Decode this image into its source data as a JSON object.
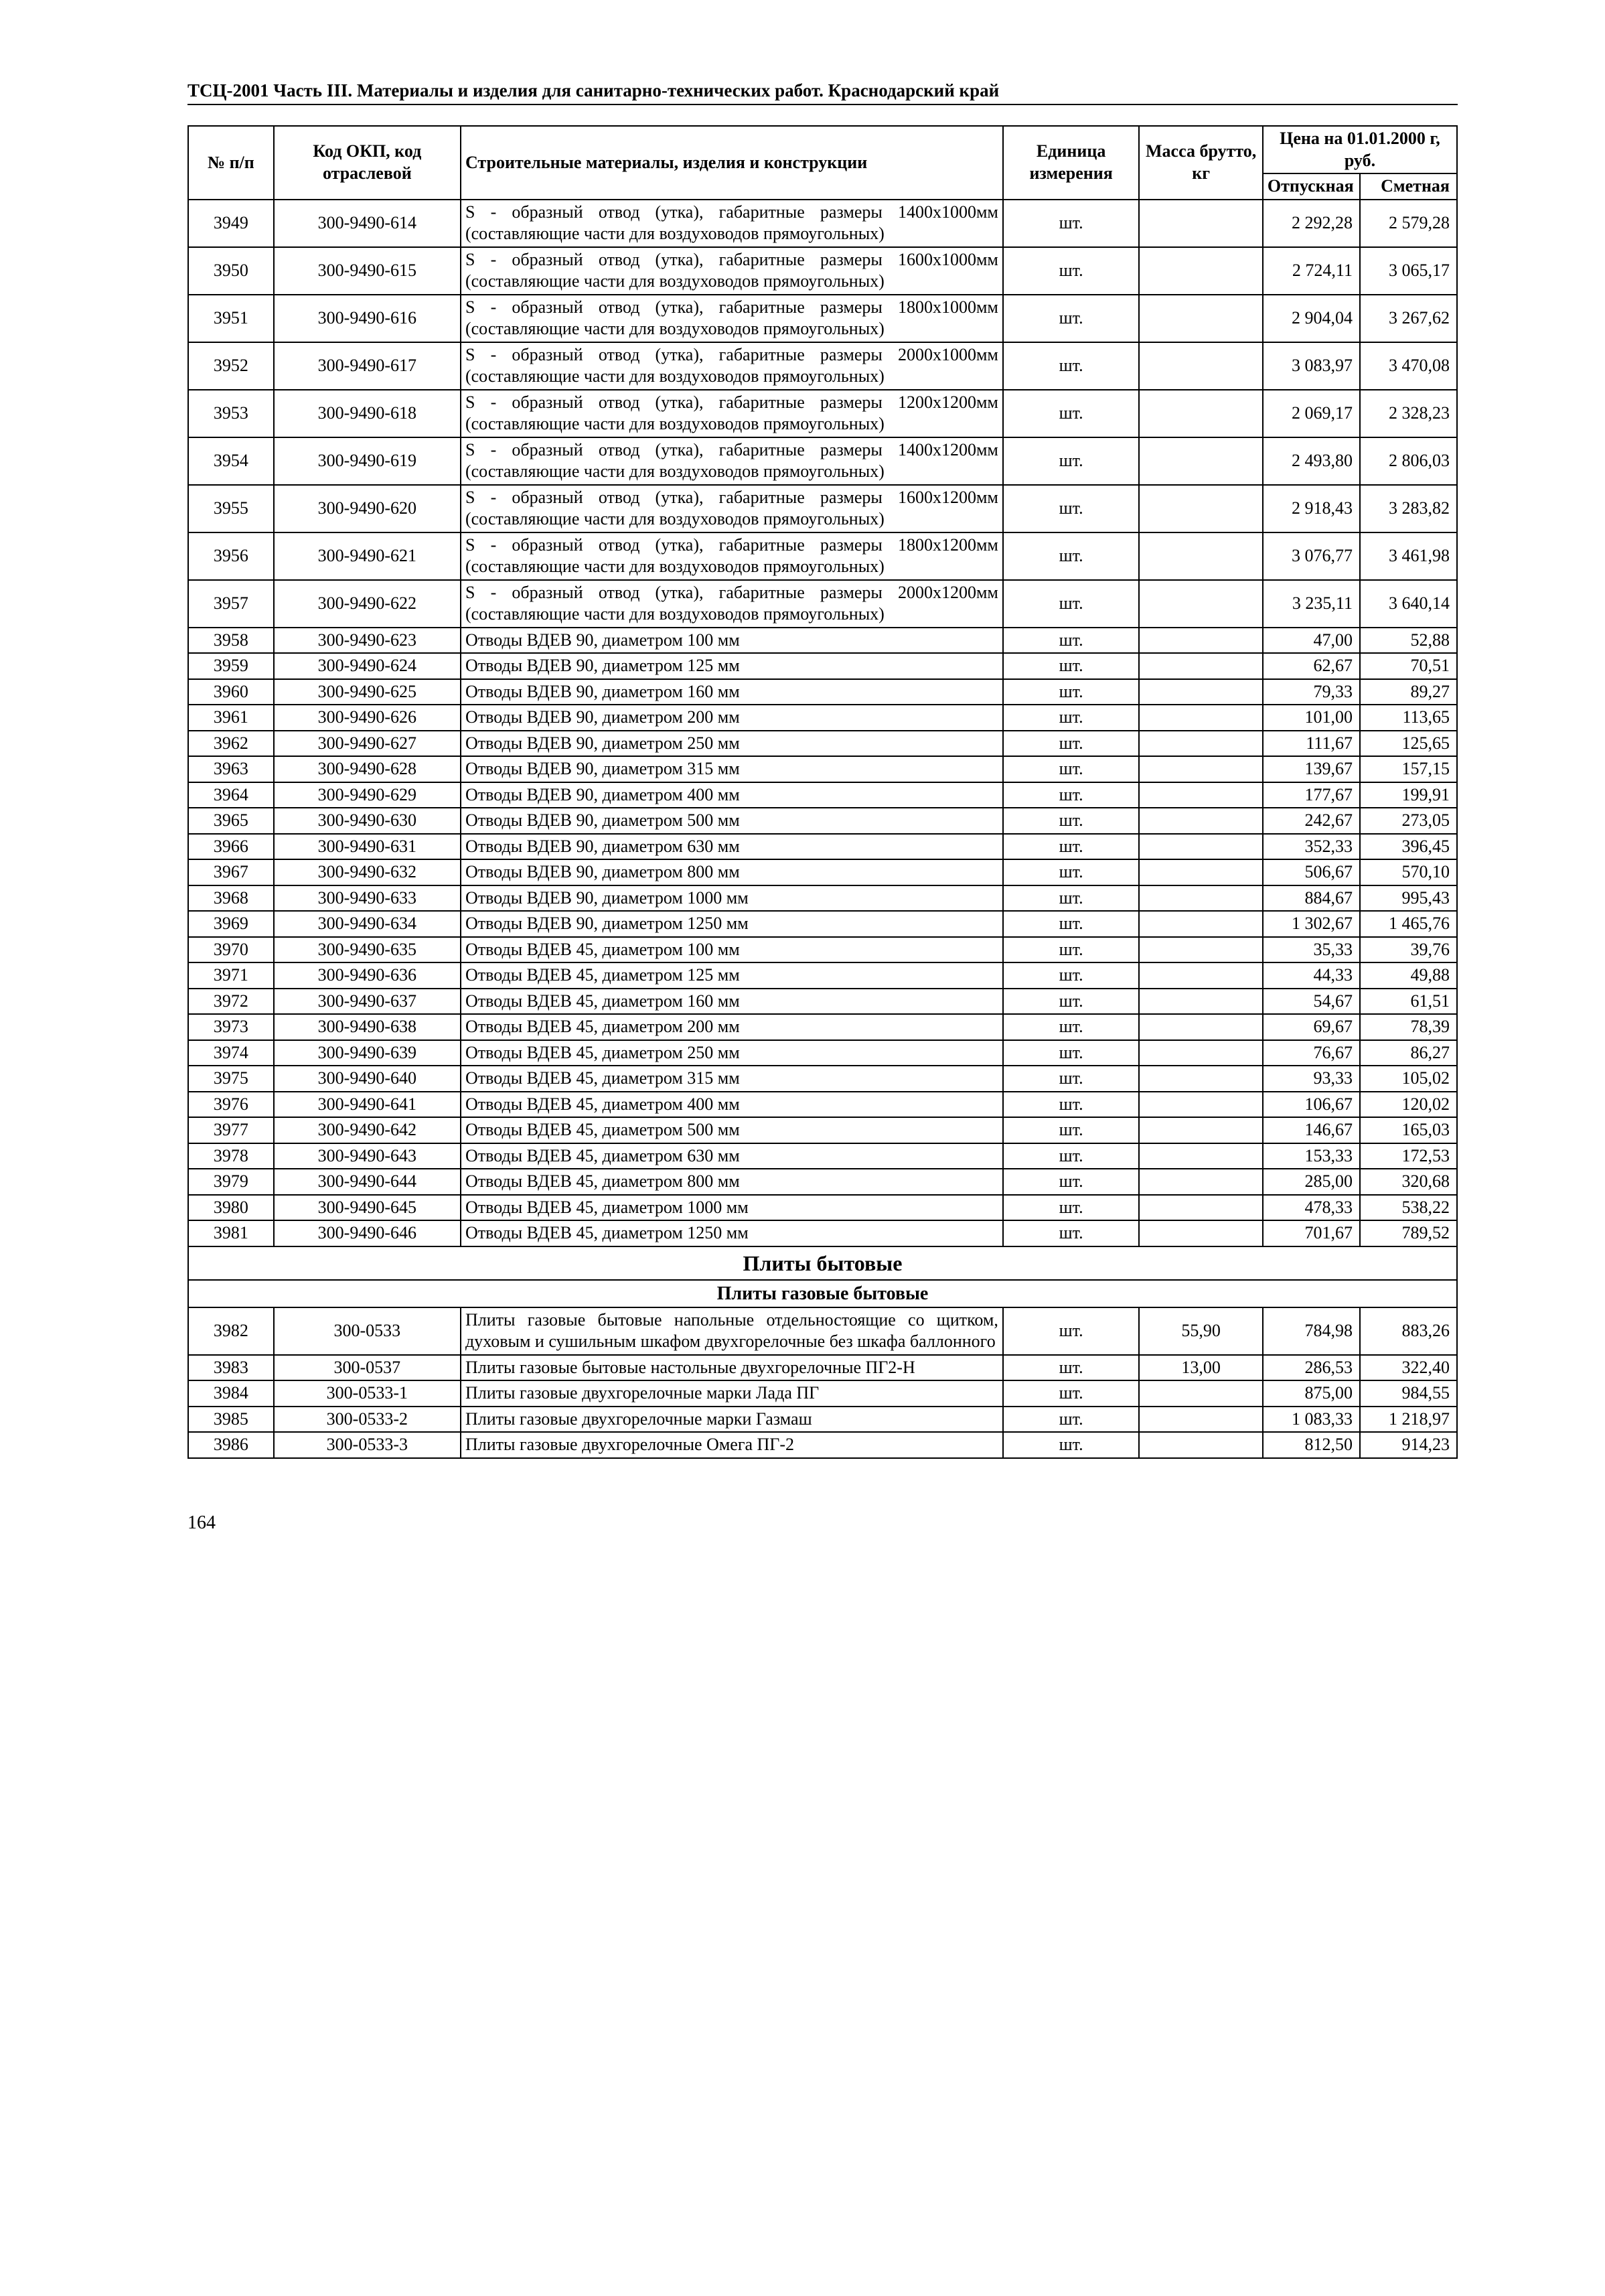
{
  "header": "ТСЦ-2001 Часть III. Материалы и изделия для санитарно-технических работ.  Краснодарский край",
  "table": {
    "head": {
      "num": "№ п/п",
      "code": "Код ОКП, код отраслевой",
      "desc": "Строительные материалы, изделия и конструкции",
      "unit": "Единица измерения",
      "mass": "Масса брутто, кг",
      "price_group": "Цена на 01.01.2000 г, руб.",
      "p1": "Отпускная",
      "p2": "Сметная"
    },
    "rows": [
      {
        "n": "3949",
        "code": "300-9490-614",
        "desc": "S - образный отвод (утка), габаритные размеры 1400х1000мм (составляющие части для воздуховодов прямоугольных)",
        "unit": "шт.",
        "mass": "",
        "p1": "2 292,28",
        "p2": "2 579,28"
      },
      {
        "n": "3950",
        "code": "300-9490-615",
        "desc": "S - образный отвод (утка), габаритные размеры 1600х1000мм (составляющие части для воздуховодов прямоугольных)",
        "unit": "шт.",
        "mass": "",
        "p1": "2 724,11",
        "p2": "3 065,17"
      },
      {
        "n": "3951",
        "code": "300-9490-616",
        "desc": "S - образный отвод (утка), габаритные размеры 1800х1000мм (составляющие части для воздуховодов прямоугольных)",
        "unit": "шт.",
        "mass": "",
        "p1": "2 904,04",
        "p2": "3 267,62"
      },
      {
        "n": "3952",
        "code": "300-9490-617",
        "desc": "S - образный отвод (утка), габаритные размеры 2000х1000мм (составляющие части для воздуховодов прямоугольных)",
        "unit": "шт.",
        "mass": "",
        "p1": "3 083,97",
        "p2": "3 470,08"
      },
      {
        "n": "3953",
        "code": "300-9490-618",
        "desc": "S - образный отвод (утка), габаритные размеры 1200х1200мм (составляющие части для воздуховодов прямоугольных)",
        "unit": "шт.",
        "mass": "",
        "p1": "2 069,17",
        "p2": "2 328,23"
      },
      {
        "n": "3954",
        "code": "300-9490-619",
        "desc": "S - образный отвод (утка), габаритные размеры 1400х1200мм (составляющие части для воздуховодов прямоугольных)",
        "unit": "шт.",
        "mass": "",
        "p1": "2 493,80",
        "p2": "2 806,03"
      },
      {
        "n": "3955",
        "code": "300-9490-620",
        "desc": "S - образный отвод (утка), габаритные размеры 1600х1200мм (составляющие части для воздуховодов прямоугольных)",
        "unit": "шт.",
        "mass": "",
        "p1": "2 918,43",
        "p2": "3 283,82"
      },
      {
        "n": "3956",
        "code": "300-9490-621",
        "desc": "S - образный отвод (утка), габаритные размеры 1800х1200мм (составляющие части для воздуховодов прямоугольных)",
        "unit": "шт.",
        "mass": "",
        "p1": "3 076,77",
        "p2": "3 461,98"
      },
      {
        "n": "3957",
        "code": "300-9490-622",
        "desc": "S - образный отвод (утка), габаритные размеры 2000х1200мм (составляющие части для воздуховодов прямоугольных)",
        "unit": "шт.",
        "mass": "",
        "p1": "3 235,11",
        "p2": "3 640,14"
      },
      {
        "n": "3958",
        "code": "300-9490-623",
        "desc": "Отводы ВДЕВ 90, диаметром 100 мм",
        "unit": "шт.",
        "mass": "",
        "p1": "47,00",
        "p2": "52,88"
      },
      {
        "n": "3959",
        "code": "300-9490-624",
        "desc": "Отводы ВДЕВ 90, диаметром 125 мм",
        "unit": "шт.",
        "mass": "",
        "p1": "62,67",
        "p2": "70,51"
      },
      {
        "n": "3960",
        "code": "300-9490-625",
        "desc": "Отводы ВДЕВ 90, диаметром 160 мм",
        "unit": "шт.",
        "mass": "",
        "p1": "79,33",
        "p2": "89,27"
      },
      {
        "n": "3961",
        "code": "300-9490-626",
        "desc": " Отводы ВДЕВ 90, диаметром 200 мм",
        "unit": "шт.",
        "mass": "",
        "p1": "101,00",
        "p2": "113,65"
      },
      {
        "n": "3962",
        "code": "300-9490-627",
        "desc": "Отводы ВДЕВ 90, диаметром 250 мм",
        "unit": "шт.",
        "mass": "",
        "p1": "111,67",
        "p2": "125,65"
      },
      {
        "n": "3963",
        "code": "300-9490-628",
        "desc": "Отводы ВДЕВ 90, диаметром 315 мм",
        "unit": "шт.",
        "mass": "",
        "p1": "139,67",
        "p2": "157,15"
      },
      {
        "n": "3964",
        "code": "300-9490-629",
        "desc": "Отводы ВДЕВ 90, диаметром 400 мм",
        "unit": "шт.",
        "mass": "",
        "p1": "177,67",
        "p2": "199,91"
      },
      {
        "n": "3965",
        "code": "300-9490-630",
        "desc": "Отводы ВДЕВ 90, диаметром 500 мм",
        "unit": "шт.",
        "mass": "",
        "p1": "242,67",
        "p2": "273,05"
      },
      {
        "n": "3966",
        "code": "300-9490-631",
        "desc": "Отводы ВДЕВ 90, диаметром 630 мм",
        "unit": "шт.",
        "mass": "",
        "p1": "352,33",
        "p2": "396,45"
      },
      {
        "n": "3967",
        "code": "300-9490-632",
        "desc": "Отводы ВДЕВ 90, диаметром 800 мм",
        "unit": "шт.",
        "mass": "",
        "p1": "506,67",
        "p2": "570,10"
      },
      {
        "n": "3968",
        "code": "300-9490-633",
        "desc": "Отводы ВДЕВ 90, диаметром 1000 мм",
        "unit": "шт.",
        "mass": "",
        "p1": "884,67",
        "p2": "995,43"
      },
      {
        "n": "3969",
        "code": "300-9490-634",
        "desc": "Отводы ВДЕВ 90, диаметром 1250 мм",
        "unit": "шт.",
        "mass": "",
        "p1": "1 302,67",
        "p2": "1 465,76"
      },
      {
        "n": "3970",
        "code": "300-9490-635",
        "desc": "Отводы ВДЕВ 45, диаметром 100 мм",
        "unit": "шт.",
        "mass": "",
        "p1": "35,33",
        "p2": "39,76"
      },
      {
        "n": "3971",
        "code": "300-9490-636",
        "desc": "Отводы ВДЕВ 45, диаметром 125 мм",
        "unit": "шт.",
        "mass": "",
        "p1": "44,33",
        "p2": "49,88"
      },
      {
        "n": "3972",
        "code": "300-9490-637",
        "desc": "Отводы ВДЕВ 45, диаметром 160 мм",
        "unit": "шт.",
        "mass": "",
        "p1": "54,67",
        "p2": "61,51"
      },
      {
        "n": "3973",
        "code": "300-9490-638",
        "desc": "Отводы ВДЕВ 45, диаметром 200 мм",
        "unit": "шт.",
        "mass": "",
        "p1": "69,67",
        "p2": "78,39"
      },
      {
        "n": "3974",
        "code": "300-9490-639",
        "desc": "Отводы ВДЕВ 45, диаметром 250 мм",
        "unit": "шт.",
        "mass": "",
        "p1": "76,67",
        "p2": "86,27"
      },
      {
        "n": "3975",
        "code": "300-9490-640",
        "desc": "Отводы ВДЕВ 45, диаметром 315 мм",
        "unit": "шт.",
        "mass": "",
        "p1": "93,33",
        "p2": "105,02"
      },
      {
        "n": "3976",
        "code": "300-9490-641",
        "desc": "Отводы ВДЕВ 45, диаметром 400 мм",
        "unit": "шт.",
        "mass": "",
        "p1": "106,67",
        "p2": "120,02"
      },
      {
        "n": "3977",
        "code": "300-9490-642",
        "desc": "Отводы ВДЕВ 45, диаметром 500 мм",
        "unit": "шт.",
        "mass": "",
        "p1": "146,67",
        "p2": "165,03"
      },
      {
        "n": "3978",
        "code": "300-9490-643",
        "desc": "Отводы ВДЕВ 45, диаметром 630 мм",
        "unit": "шт.",
        "mass": "",
        "p1": "153,33",
        "p2": "172,53"
      },
      {
        "n": "3979",
        "code": "300-9490-644",
        "desc": "Отводы ВДЕВ 45, диаметром 800 мм",
        "unit": "шт.",
        "mass": "",
        "p1": "285,00",
        "p2": "320,68"
      },
      {
        "n": "3980",
        "code": "300-9490-645",
        "desc": "Отводы ВДЕВ 45, диаметром 1000 мм",
        "unit": "шт.",
        "mass": "",
        "p1": "478,33",
        "p2": "538,22"
      },
      {
        "n": "3981",
        "code": "300-9490-646",
        "desc": "Отводы ВДЕВ 45, диаметром 1250 мм",
        "unit": "шт.",
        "mass": "",
        "p1": "701,67",
        "p2": "789,52"
      },
      {
        "section": "Плиты бытовые"
      },
      {
        "subsection": "Плиты газовые бытовые"
      },
      {
        "n": "3982",
        "code": "300-0533",
        "desc": "Плиты газовые бытовые напольные отдельностоящие со щитком, духовым и сушильным шкафом двухгорелочные без шкафа баллонного",
        "unit": "шт.",
        "mass": "55,90",
        "p1": "784,98",
        "p2": "883,26"
      },
      {
        "n": "3983",
        "code": "300-0537",
        "desc": "Плиты газовые бытовые настольные двухгорелочные ПГ2-Н",
        "unit": "шт.",
        "mass": "13,00",
        "p1": "286,53",
        "p2": "322,40"
      },
      {
        "n": "3984",
        "code": "300-0533-1",
        "desc": "Плиты газовые двухгорелочные марки Лада ПГ",
        "unit": "шт.",
        "mass": "",
        "p1": "875,00",
        "p2": "984,55"
      },
      {
        "n": "3985",
        "code": "300-0533-2",
        "desc": "Плиты газовые двухгорелочные марки Газмаш",
        "unit": "шт.",
        "mass": "",
        "p1": "1 083,33",
        "p2": "1 218,97"
      },
      {
        "n": "3986",
        "code": "300-0533-3",
        "desc": "Плиты газовые двухгорелочные Омега ПГ-2",
        "unit": "шт.",
        "mass": "",
        "p1": "812,50",
        "p2": "914,23"
      }
    ]
  },
  "page_number": "164"
}
